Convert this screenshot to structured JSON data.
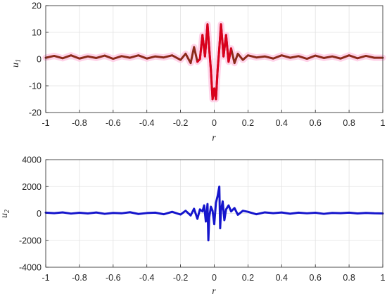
{
  "chart_data": [
    {
      "type": "line",
      "xlabel": "r",
      "ylabel": "u",
      "ylabel_sub": "1",
      "xlim": [
        -1,
        1
      ],
      "ylim": [
        -20,
        20
      ],
      "xticks": [
        -1,
        -0.8,
        -0.6,
        -0.4,
        -0.2,
        0,
        0.2,
        0.4,
        0.6,
        0.8,
        1
      ],
      "xtick_labels": [
        "-1",
        "-0.8",
        "-0.6",
        "-0.4",
        "-0.2",
        "0",
        "0.2",
        "0.4",
        "0.6",
        "0.8",
        "1"
      ],
      "yticks": [
        -20,
        -10,
        0,
        10,
        20
      ],
      "ytick_labels": [
        "-20",
        "-10",
        "0",
        "10",
        "20"
      ],
      "grid": true,
      "series": [
        {
          "color": "#8b2a1a",
          "highlight_color": "#d9001c",
          "x": [
            -1,
            -0.95,
            -0.9,
            -0.85,
            -0.8,
            -0.75,
            -0.7,
            -0.65,
            -0.6,
            -0.55,
            -0.5,
            -0.45,
            -0.4,
            -0.35,
            -0.3,
            -0.25,
            -0.2,
            -0.17,
            -0.14,
            -0.12,
            -0.1,
            -0.085,
            -0.07,
            -0.055,
            -0.04,
            -0.03,
            -0.02,
            -0.01,
            0,
            0.01,
            0.02,
            0.03,
            0.04,
            0.055,
            0.07,
            0.085,
            0.1,
            0.12,
            0.14,
            0.17,
            0.2,
            0.25,
            0.3,
            0.35,
            0.4,
            0.45,
            0.5,
            0.55,
            0.6,
            0.65,
            0.7,
            0.75,
            0.8,
            0.85,
            0.9,
            0.95,
            1
          ],
          "y": [
            0.5,
            1.2,
            0.3,
            1.4,
            0.2,
            1.0,
            0.4,
            1.3,
            0.1,
            1.1,
            0.5,
            1.4,
            0.2,
            1.0,
            0.6,
            1.4,
            -0.3,
            2.0,
            -1.5,
            4.5,
            -1.0,
            0.0,
            9.0,
            1.0,
            13.0,
            4.0,
            -4.0,
            -15.0,
            -11.0,
            -15.0,
            -4.0,
            4.0,
            13.0,
            1.0,
            9.0,
            -1.0,
            4.0,
            -1.5,
            2.0,
            -0.3,
            1.4,
            0.6,
            1.0,
            0.2,
            1.4,
            0.5,
            1.1,
            0.1,
            1.3,
            0.4,
            1.0,
            0.2,
            1.4,
            0.3,
            1.2,
            0.5,
            0.5
          ]
        }
      ]
    },
    {
      "type": "line",
      "xlabel": "r",
      "ylabel": "u",
      "ylabel_sub": "2",
      "xlim": [
        -1,
        1
      ],
      "ylim": [
        -4000,
        4000
      ],
      "xticks": [
        -1,
        -0.8,
        -0.6,
        -0.4,
        -0.2,
        0,
        0.2,
        0.4,
        0.6,
        0.8,
        1
      ],
      "xtick_labels": [
        "-1",
        "-0.8",
        "-0.6",
        "-0.4",
        "-0.2",
        "0",
        "0.2",
        "0.4",
        "0.6",
        "0.8",
        "1"
      ],
      "yticks": [
        -4000,
        -2000,
        0,
        2000,
        4000
      ],
      "ytick_labels": [
        "-4000",
        "-2000",
        "0",
        "2000",
        "4000"
      ],
      "grid": true,
      "series": [
        {
          "color": "#1515cc",
          "x": [
            -1,
            -0.95,
            -0.9,
            -0.85,
            -0.8,
            -0.75,
            -0.7,
            -0.65,
            -0.6,
            -0.55,
            -0.5,
            -0.45,
            -0.4,
            -0.35,
            -0.3,
            -0.25,
            -0.2,
            -0.17,
            -0.14,
            -0.12,
            -0.1,
            -0.085,
            -0.07,
            -0.06,
            -0.05,
            -0.04,
            -0.035,
            -0.03,
            -0.02,
            -0.01,
            0,
            0.01,
            0.02,
            0.03,
            0.035,
            0.04,
            0.05,
            0.06,
            0.07,
            0.085,
            0.1,
            0.12,
            0.14,
            0.17,
            0.2,
            0.25,
            0.3,
            0.35,
            0.4,
            0.45,
            0.5,
            0.55,
            0.6,
            0.65,
            0.7,
            0.75,
            0.8,
            0.85,
            0.9,
            0.95,
            1
          ],
          "y": [
            60,
            20,
            80,
            -10,
            50,
            0,
            70,
            -30,
            40,
            10,
            90,
            -40,
            30,
            60,
            -60,
            120,
            -80,
            200,
            -150,
            350,
            -400,
            300,
            150,
            600,
            -600,
            700,
            -2000,
            -300,
            500,
            200,
            -800,
            800,
            1300,
            2000,
            -1100,
            200,
            900,
            -500,
            300,
            600,
            150,
            400,
            -100,
            200,
            120,
            -60,
            80,
            20,
            70,
            -20,
            60,
            10,
            50,
            -30,
            40,
            20,
            60,
            0,
            40,
            10,
            0
          ]
        }
      ]
    }
  ]
}
